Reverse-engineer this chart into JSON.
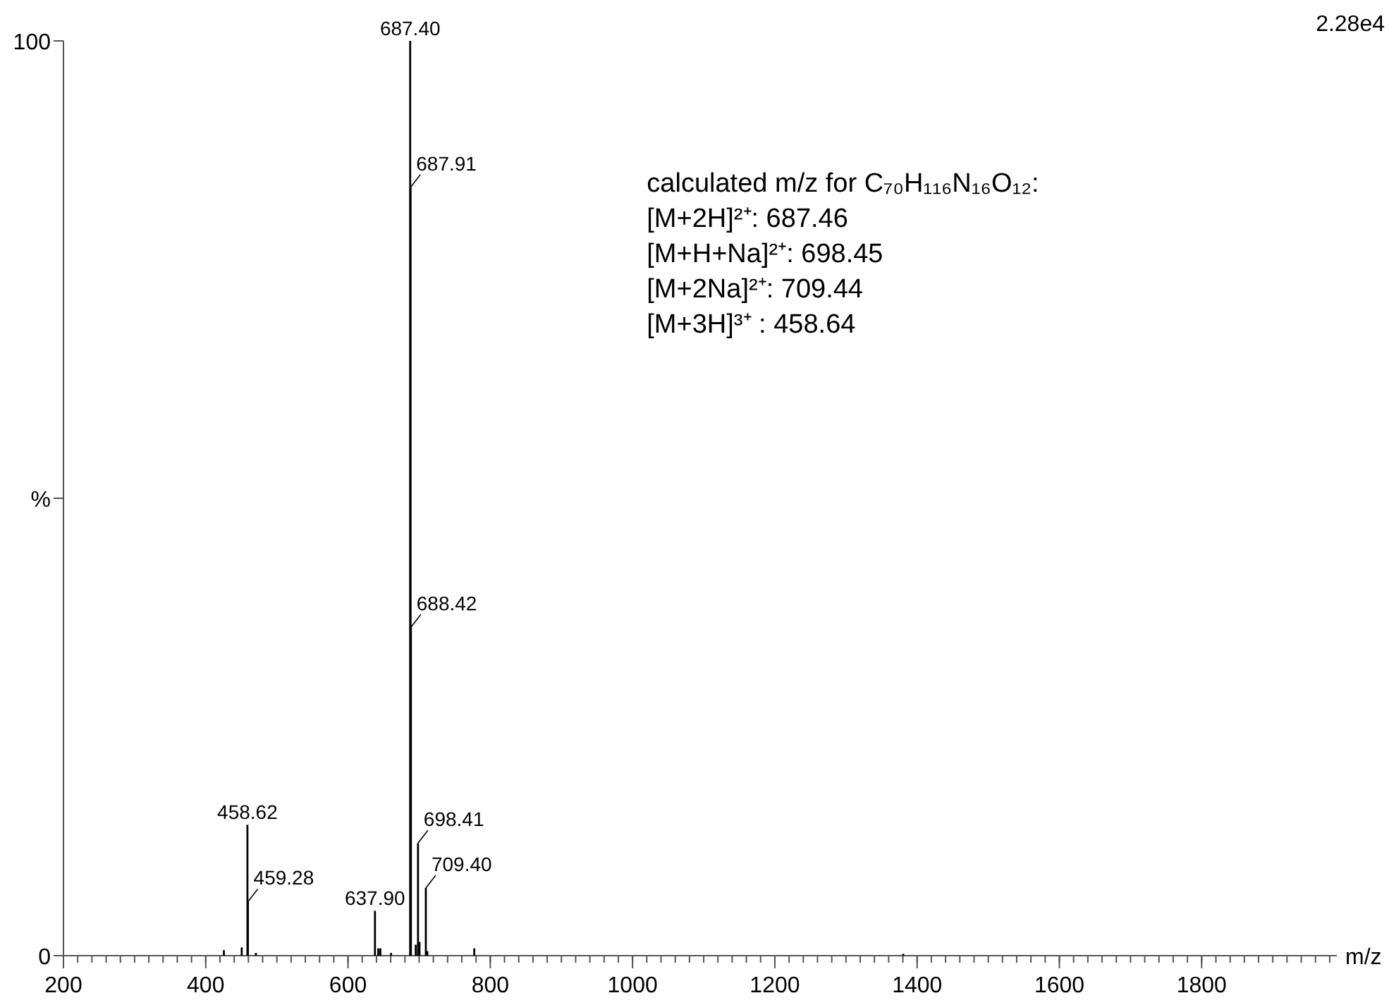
{
  "chart_data": {
    "type": "bar",
    "xlabel": "m/z",
    "ylabel": "%",
    "color": "#000000",
    "x": [
      425.5,
      450.6,
      458.62,
      459.28,
      470.5,
      637.9,
      642.5,
      645.5,
      660.5,
      687.4,
      687.91,
      688.42,
      695.2,
      698.41,
      700.5,
      709.4,
      711.5,
      777.5,
      1380.5
    ],
    "values": [
      0.6,
      0.9,
      14.3,
      5.9,
      0.3,
      4.9,
      0.8,
      0.8,
      0.3,
      100,
      84,
      35.9,
      1.2,
      12.3,
      1.5,
      7.4,
      0.5,
      0.8,
      0.2
    ],
    "xlim": [
      200,
      1990
    ],
    "xticks": [
      200,
      400,
      600,
      800,
      1000,
      1200,
      1400,
      1600,
      1800
    ],
    "ylim": [
      0,
      100
    ],
    "yticks": [
      0,
      100
    ],
    "annotations": [
      {
        "text": "687.40",
        "x": 687.4,
        "y": 100
      },
      {
        "text": "687.91",
        "x": 687.91,
        "y": 84
      },
      {
        "text": "688.42",
        "x": 688.42,
        "y": 35.9
      },
      {
        "text": "458.62",
        "x": 458.62,
        "y": 14.3
      },
      {
        "text": "459.28",
        "x": 459.28,
        "y": 5.9
      },
      {
        "text": "637.90",
        "x": 637.9,
        "y": 4.9
      },
      {
        "text": "698.41",
        "x": 698.41,
        "y": 12.3
      },
      {
        "text": "709.40",
        "x": 709.4,
        "y": 7.4
      },
      "2.28e4",
      "calculated m/z for C₇₀H₁₁₆N₁₆O₁₂:",
      "[M+2H]²⁺: 687.46",
      "[M+H+Na]²⁺: 698.45",
      "[M+2Na]²⁺: 709.44",
      "[M+3H]³⁺ : 458.64"
    ]
  }
}
